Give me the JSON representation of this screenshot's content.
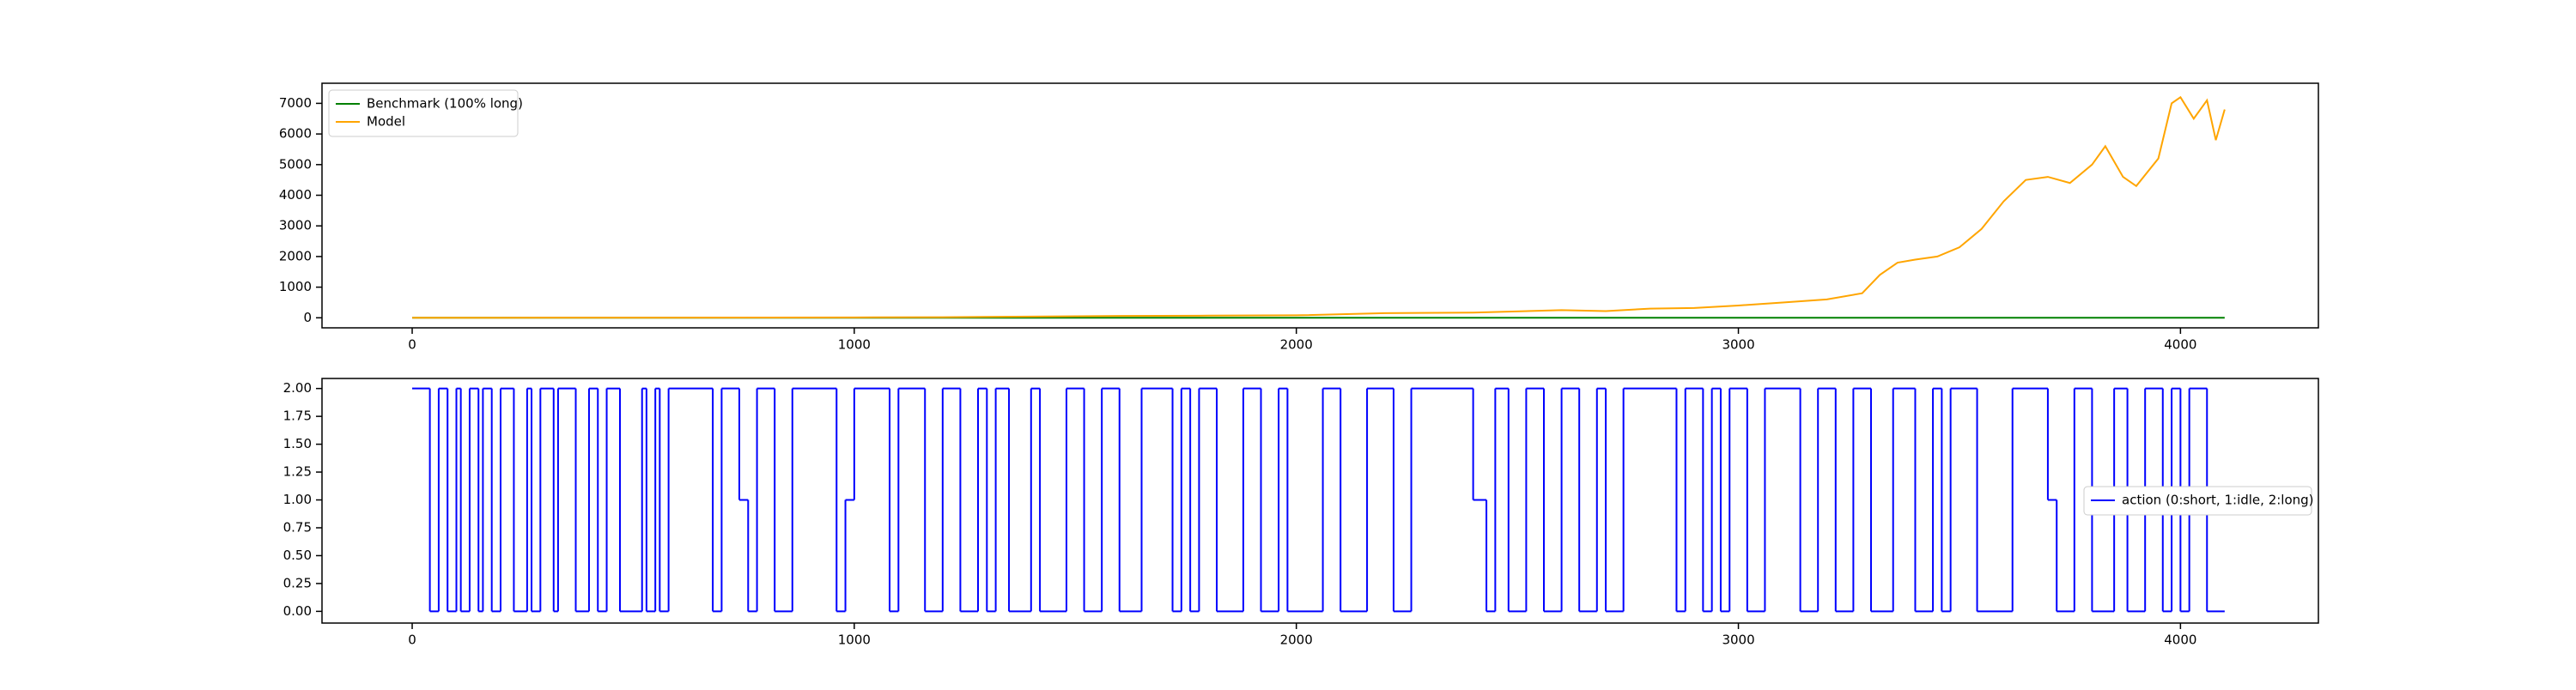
{
  "chart_data": [
    {
      "type": "line",
      "legend": "upper left",
      "x": [
        0,
        200,
        400,
        600,
        800,
        1000,
        1200,
        1400,
        1600,
        1800,
        2000,
        2200,
        2400,
        2600,
        2700,
        2800,
        2900,
        3000,
        3100,
        3200,
        3280,
        3320,
        3360,
        3400,
        3450,
        3500,
        3550,
        3600,
        3650,
        3700,
        3750,
        3800,
        3830,
        3870,
        3900,
        3950,
        3980,
        4000,
        4030,
        4060,
        4080,
        4100
      ],
      "series": [
        {
          "name": "Benchmark (100% long)",
          "color": "#008000",
          "values": [
            1,
            1,
            1,
            1,
            1,
            1,
            1,
            1,
            1,
            1,
            1,
            1,
            1,
            1,
            1,
            1,
            1,
            1,
            1,
            1,
            1,
            1,
            1,
            1,
            1,
            1,
            1,
            1,
            1,
            1,
            1,
            1,
            1,
            1,
            1,
            1,
            1,
            1,
            1,
            1,
            1,
            1
          ]
        },
        {
          "name": "Model",
          "color": "#ffa500",
          "values": [
            1,
            2,
            4,
            6,
            8,
            12,
            20,
            40,
            60,
            70,
            80,
            150,
            170,
            250,
            220,
            300,
            320,
            400,
            500,
            600,
            800,
            1400,
            1800,
            1900,
            2000,
            2300,
            2900,
            3800,
            4500,
            4600,
            4400,
            5000,
            5600,
            4600,
            4300,
            5200,
            7000,
            7200,
            6500,
            7100,
            5800,
            6800
          ]
        }
      ],
      "xlim": [
        -204,
        4312
      ],
      "xticks": [
        0,
        1000,
        2000,
        3000,
        4000
      ],
      "ylim": [
        -328,
        7656
      ],
      "yticks": [
        0,
        1000,
        2000,
        3000,
        4000,
        5000,
        6000,
        7000
      ]
    },
    {
      "type": "line",
      "drawstyle": "steps-post",
      "legend": "center right",
      "x": [
        0,
        40,
        60,
        80,
        100,
        110,
        130,
        150,
        160,
        180,
        200,
        230,
        260,
        270,
        290,
        320,
        330,
        370,
        400,
        420,
        440,
        470,
        520,
        530,
        550,
        560,
        580,
        680,
        700,
        740,
        760,
        780,
        820,
        860,
        960,
        980,
        1000,
        1080,
        1100,
        1160,
        1200,
        1240,
        1280,
        1300,
        1320,
        1350,
        1400,
        1420,
        1480,
        1520,
        1560,
        1600,
        1650,
        1720,
        1740,
        1760,
        1780,
        1820,
        1880,
        1920,
        1960,
        1980,
        2060,
        2100,
        2160,
        2220,
        2260,
        2400,
        2430,
        2450,
        2480,
        2520,
        2560,
        2600,
        2640,
        2680,
        2700,
        2740,
        2860,
        2880,
        2920,
        2940,
        2960,
        2980,
        3020,
        3060,
        3140,
        3180,
        3220,
        3260,
        3300,
        3350,
        3400,
        3440,
        3460,
        3480,
        3540,
        3620,
        3700,
        3720,
        3760,
        3800,
        3850,
        3880,
        3920,
        3960,
        3980,
        4000,
        4020,
        4060,
        4100
      ],
      "series": [
        {
          "name": "action (0:short, 1:idle, 2:long)",
          "color": "#0000ff",
          "values": [
            2,
            0,
            2,
            0,
            2,
            0,
            2,
            0,
            2,
            0,
            2,
            0,
            2,
            0,
            2,
            0,
            2,
            0,
            2,
            0,
            2,
            0,
            2,
            0,
            2,
            0,
            2,
            0,
            2,
            1,
            0,
            2,
            0,
            2,
            0,
            1,
            2,
            0,
            2,
            0,
            2,
            0,
            2,
            0,
            2,
            0,
            2,
            0,
            2,
            0,
            2,
            0,
            2,
            0,
            2,
            0,
            2,
            0,
            2,
            0,
            2,
            0,
            2,
            0,
            2,
            0,
            2,
            1,
            0,
            2,
            0,
            2,
            0,
            2,
            0,
            2,
            0,
            2,
            0,
            2,
            0,
            2,
            0,
            2,
            0,
            2,
            0,
            2,
            0,
            2,
            0,
            2,
            0,
            2,
            0,
            2,
            0,
            2,
            1,
            0,
            2,
            0,
            2,
            0,
            2,
            0,
            2,
            0,
            2,
            0,
            0
          ]
        }
      ],
      "xlim": [
        -204,
        4312
      ],
      "xticks": [
        0,
        1000,
        2000,
        3000,
        4000
      ],
      "ylim": [
        -0.105,
        2.09
      ],
      "yticks": [
        {
          "value": 0,
          "label": "0.00"
        },
        {
          "value": 0.25,
          "label": "0.25"
        },
        {
          "value": 0.5,
          "label": "0.50"
        },
        {
          "value": 0.75,
          "label": "0.75"
        },
        {
          "value": 1,
          "label": "1.00"
        },
        {
          "value": 1.25,
          "label": "1.25"
        },
        {
          "value": 1.5,
          "label": "1.50"
        },
        {
          "value": 1.75,
          "label": "1.75"
        },
        {
          "value": 2,
          "label": "2.00"
        }
      ]
    }
  ]
}
